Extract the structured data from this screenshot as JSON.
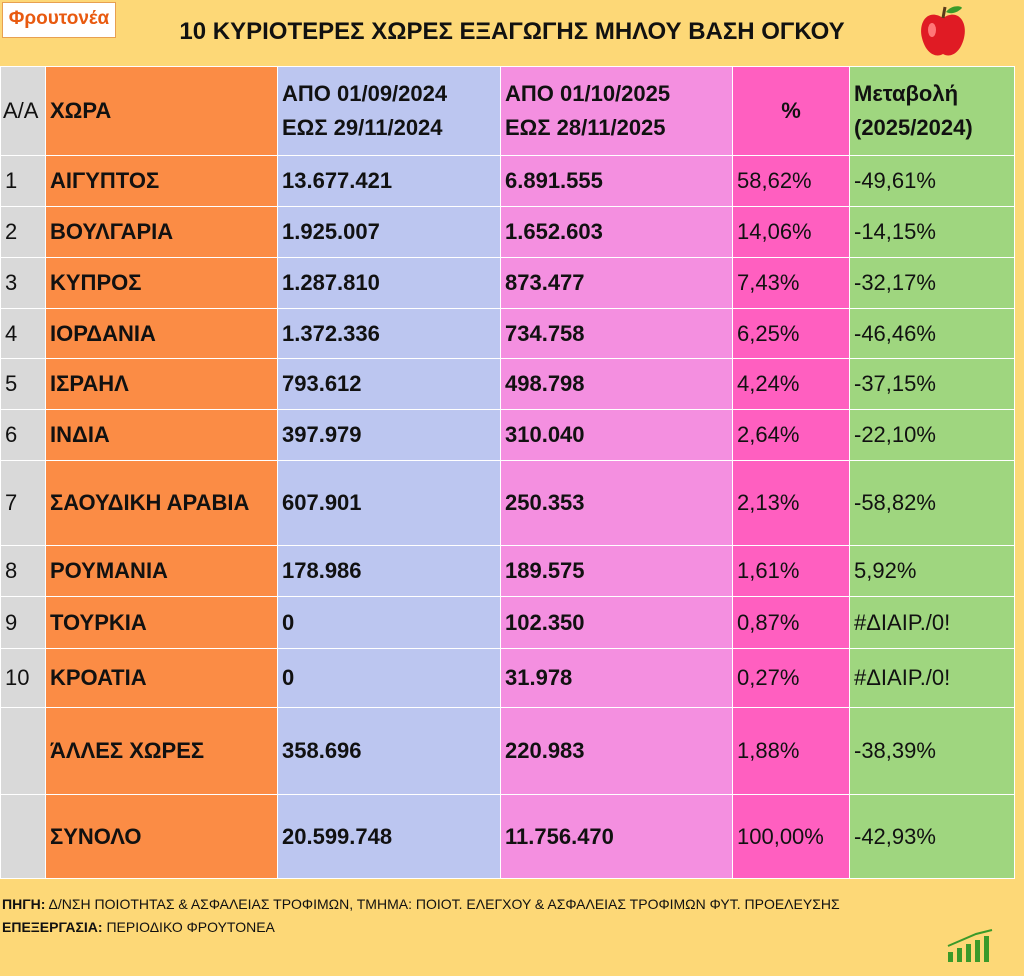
{
  "header": {
    "logo": "Φρουτονέα",
    "title": "10 ΚΥΡΙΟΤΕΡΕΣ ΧΩΡΕΣ ΕΞΑΓΩΓΗΣ ΜΗΛΟΥ ΒΑΣΗ ΟΓΚΟΥ"
  },
  "table": {
    "columns": [
      [
        "Α/Α"
      ],
      [
        "ΧΩΡΑ"
      ],
      [
        "ΑΠΟ 01/09/2024",
        "ΕΩΣ 29/11/2024"
      ],
      [
        "ΑΠΟ 01/10/2025",
        "ΕΩΣ 28/11/2025"
      ],
      [
        "%"
      ],
      [
        "Μεταβολή",
        "(2025/2024)"
      ]
    ],
    "rows": [
      {
        "no": "1",
        "cells": [
          "ΑΙΓΥΠΤΟΣ",
          "13.677.421",
          "6.891.555",
          "58,62%",
          "-49,61%"
        ]
      },
      {
        "no": "2",
        "cells": [
          "ΒΟΥΛΓΑΡΙΑ",
          "1.925.007",
          "1.652.603",
          "14,06%",
          "-14,15%"
        ]
      },
      {
        "no": "3",
        "cells": [
          "ΚΥΠΡΟΣ",
          "1.287.810",
          "873.477",
          "7,43%",
          "-32,17%"
        ]
      },
      {
        "no": "4",
        "cells": [
          "ΙΟΡΔΑΝΙΑ",
          "1.372.336",
          "734.758",
          "6,25%",
          "-46,46%"
        ]
      },
      {
        "no": "5",
        "cells": [
          "ΙΣΡΑΗΛ",
          "793.612",
          "498.798",
          "4,24%",
          "-37,15%"
        ]
      },
      {
        "no": "6",
        "cells": [
          "ΙΝΔΙΑ",
          "397.979",
          "310.040",
          "2,64%",
          "-22,10%"
        ]
      },
      {
        "no": "7",
        "cells": [
          "ΣΑΟΥΔΙΚΗ ΑΡΑΒΙΑ",
          "607.901",
          "250.353",
          "2,13%",
          "-58,82%"
        ]
      },
      {
        "no": "8",
        "cells": [
          "ΡΟΥΜΑΝΙΑ",
          "178.986",
          "189.575",
          "1,61%",
          "5,92%"
        ]
      },
      {
        "no": "9",
        "cells": [
          "ΤΟΥΡΚΙΑ",
          "0",
          "102.350",
          "0,87%",
          "#ΔΙΑΙΡ./0!"
        ]
      },
      {
        "no": "10",
        "cells": [
          "ΚΡΟΑΤΙΑ",
          "0",
          "31.978",
          "0,27%",
          "#ΔΙΑΙΡ./0!"
        ]
      },
      {
        "cells": [
          "ΆΛΛΕΣ ΧΩΡΕΣ",
          "358.696",
          "220.983",
          "1,88%",
          "-38,39%"
        ]
      },
      {
        "cells": [
          "ΣΥΝΟΛΟ",
          "20.599.748",
          "11.756.470",
          "100,00%",
          "-42,93%"
        ]
      }
    ]
  },
  "footer": {
    "source_label": "ΠΗΓΗ:",
    "source": "Δ/ΝΣΗ ΠΟΙΟΤΗΤΑΣ & ΑΣΦΑΛΕΙΑΣ ΤΡΟΦΙΜΩΝ, ΤΜΗΜΑ: ΠΟΙΟΤ. ΕΛΕΓΧΟΥ & ΑΣΦΑΛΕΙΑΣ ΤΡΟΦΙΜΩΝ ΦΥΤ. ΠΡΟΕΛΕΥΣΗΣ",
    "processing_label": "ΕΠΕΞΕΡΓΑΣΙΑ:",
    "processing": "ΠΕΡΙΟΔΙΚΟ ΦΡΟΥΤΟΝΕΑ"
  }
}
